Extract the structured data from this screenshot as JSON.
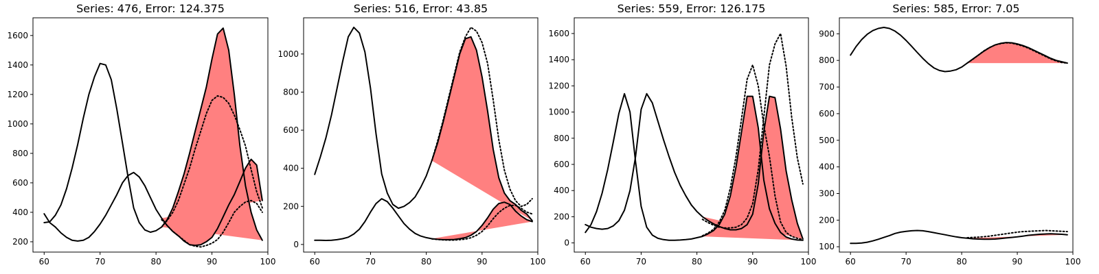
{
  "colors": {
    "actual": "#000000",
    "forecast": "#000000",
    "band": "#ff8080"
  },
  "chart_data": [
    {
      "type": "line",
      "title": "Series: 476, Error: 124.375",
      "xlim": [
        58,
        100
      ],
      "ylim": [
        130,
        1720
      ],
      "xticks": [
        60,
        70,
        80,
        90,
        100
      ],
      "yticks": [
        200,
        400,
        600,
        800,
        1000,
        1200,
        1400,
        1600
      ],
      "x": [
        60,
        61,
        62,
        63,
        64,
        65,
        66,
        67,
        68,
        69,
        70,
        71,
        72,
        73,
        74,
        75,
        76,
        77,
        78,
        79,
        80,
        81,
        82,
        83,
        84,
        85,
        86,
        87,
        88,
        89,
        90,
        91,
        92,
        93,
        94,
        95,
        96,
        97,
        98,
        99
      ],
      "series": [
        {
          "values": [
            390,
            330,
            300,
            260,
            230,
            210,
            205,
            210,
            230,
            270,
            320,
            380,
            450,
            520,
            600,
            650,
            670,
            640,
            580,
            500,
            420,
            360,
            310,
            270,
            240,
            205,
            180,
            175,
            180,
            200,
            230,
            290,
            370,
            450,
            520,
            610,
            700,
            760,
            720,
            480
          ]
        },
        {
          "values": [
            330,
            335,
            380,
            450,
            560,
            700,
            860,
            1040,
            1200,
            1320,
            1410,
            1400,
            1300,
            1100,
            870,
            640,
            430,
            330,
            280,
            265,
            275,
            300,
            350,
            430,
            540,
            660,
            800,
            950,
            1100,
            1250,
            1440,
            1610,
            1650,
            1500,
            1200,
            850,
            580,
            400,
            280,
            210
          ]
        }
      ],
      "forecast_start": 81,
      "forecasts": [
        {
          "values": [
            350,
            310,
            270,
            240,
            210,
            180,
            170,
            165,
            175,
            190,
            215,
            265,
            330,
            400,
            440,
            470,
            480,
            460,
            400,
            380
          ]
        },
        {
          "values": [
            300,
            345,
            400,
            480,
            590,
            700,
            830,
            950,
            1070,
            1160,
            1190,
            1180,
            1140,
            1060,
            960,
            850,
            690,
            540,
            430,
            370
          ]
        }
      ]
    },
    {
      "type": "line",
      "title": "Series: 516, Error: 43.85",
      "xlim": [
        58,
        100
      ],
      "ylim": [
        -40,
        1190
      ],
      "xticks": [
        60,
        70,
        80,
        90,
        100
      ],
      "yticks": [
        0,
        200,
        400,
        600,
        800,
        1000
      ],
      "x": [
        60,
        61,
        62,
        63,
        64,
        65,
        66,
        67,
        68,
        69,
        70,
        71,
        72,
        73,
        74,
        75,
        76,
        77,
        78,
        79,
        80,
        81,
        82,
        83,
        84,
        85,
        86,
        87,
        88,
        89,
        90,
        91,
        92,
        93,
        94,
        95,
        96,
        97,
        98,
        99
      ],
      "series": [
        {
          "values": [
            368,
            460,
            560,
            680,
            820,
            960,
            1090,
            1140,
            1110,
            1010,
            820,
            580,
            370,
            270,
            210,
            190,
            200,
            220,
            250,
            300,
            360,
            440,
            530,
            640,
            760,
            880,
            1000,
            1080,
            1090,
            1020,
            880,
            700,
            500,
            350,
            270,
            230,
            210,
            180,
            160,
            125
          ]
        },
        {
          "values": [
            22,
            22,
            21,
            22,
            25,
            30,
            38,
            55,
            80,
            120,
            170,
            215,
            240,
            225,
            190,
            150,
            110,
            80,
            58,
            44,
            36,
            30,
            27,
            25,
            25,
            26,
            30,
            36,
            48,
            68,
            100,
            140,
            185,
            215,
            222,
            210,
            175,
            150,
            130,
            120
          ]
        }
      ],
      "forecast_start": 81,
      "forecasts": [
        {
          "values": [
            440,
            540,
            650,
            770,
            890,
            1010,
            1090,
            1140,
            1120,
            1060,
            950,
            760,
            550,
            390,
            290,
            230,
            200,
            210,
            240,
            260
          ]
        },
        {
          "values": [
            29,
            26,
            24,
            23,
            23,
            25,
            28,
            35,
            48,
            68,
            98,
            135,
            168,
            190,
            205,
            205,
            190,
            170,
            160,
            180
          ]
        }
      ]
    },
    {
      "type": "line",
      "title": "Series: 559, Error: 126.175",
      "xlim": [
        58,
        100
      ],
      "ylim": [
        -70,
        1720
      ],
      "xticks": [
        60,
        70,
        80,
        90,
        100
      ],
      "yticks": [
        0,
        200,
        400,
        600,
        800,
        1000,
        1200,
        1400,
        1600
      ],
      "x": [
        60,
        61,
        62,
        63,
        64,
        65,
        66,
        67,
        68,
        69,
        70,
        71,
        72,
        73,
        74,
        75,
        76,
        77,
        78,
        79,
        80,
        81,
        82,
        83,
        84,
        85,
        86,
        87,
        88,
        89,
        90,
        91,
        92,
        93,
        94,
        95,
        96,
        97,
        98,
        99
      ],
      "series": [
        {
          "values": [
            140,
            120,
            110,
            105,
            110,
            130,
            170,
            250,
            400,
            660,
            1020,
            1140,
            1070,
            930,
            790,
            660,
            540,
            440,
            360,
            290,
            240,
            200,
            170,
            145,
            125,
            110,
            100,
            100,
            110,
            140,
            220,
            450,
            850,
            1120,
            1110,
            870,
            550,
            330,
            150,
            30
          ]
        },
        {
          "values": [
            80,
            140,
            240,
            380,
            560,
            770,
            990,
            1140,
            1000,
            620,
            280,
            120,
            60,
            35,
            25,
            20,
            20,
            22,
            25,
            30,
            40,
            50,
            70,
            95,
            140,
            220,
            360,
            580,
            850,
            1120,
            1120,
            880,
            480,
            260,
            150,
            80,
            45,
            30,
            22,
            20
          ]
        }
      ],
      "forecast_start": 81,
      "forecasts": [
        {
          "values": [
            180,
            155,
            135,
            120,
            115,
            115,
            120,
            140,
            190,
            300,
            560,
            960,
            1360,
            1520,
            1600,
            1350,
            960,
            650,
            450,
            700
          ]
        },
        {
          "values": [
            55,
            75,
            105,
            160,
            250,
            420,
            660,
            950,
            1250,
            1360,
            1200,
            900,
            660,
            360,
            160,
            80,
            50,
            35,
            25,
            20
          ]
        }
      ]
    },
    {
      "type": "line",
      "title": "Series: 585, Error: 7.05",
      "xlim": [
        58,
        100
      ],
      "ylim": [
        80,
        960
      ],
      "xticks": [
        60,
        70,
        80,
        90,
        100
      ],
      "yticks": [
        100,
        200,
        300,
        400,
        500,
        600,
        700,
        800,
        900
      ],
      "x": [
        60,
        61,
        62,
        63,
        64,
        65,
        66,
        67,
        68,
        69,
        70,
        71,
        72,
        73,
        74,
        75,
        76,
        77,
        78,
        79,
        80,
        81,
        82,
        83,
        84,
        85,
        86,
        87,
        88,
        89,
        90,
        91,
        92,
        93,
        94,
        95,
        96,
        97,
        98,
        99
      ],
      "series": [
        {
          "values": [
            820,
            852,
            878,
            898,
            912,
            920,
            924,
            920,
            910,
            895,
            875,
            853,
            830,
            808,
            788,
            772,
            762,
            758,
            760,
            765,
            775,
            790,
            805,
            820,
            835,
            848,
            858,
            864,
            867,
            866,
            862,
            856,
            848,
            838,
            828,
            818,
            808,
            800,
            795,
            790
          ]
        },
        {
          "values": [
            113,
            113,
            114,
            117,
            122,
            128,
            135,
            142,
            150,
            155,
            158,
            160,
            161,
            160,
            157,
            153,
            149,
            145,
            141,
            137,
            134,
            132,
            130,
            129,
            128,
            128,
            129,
            131,
            133,
            135,
            137,
            140,
            143,
            145,
            147,
            148,
            149,
            148,
            147,
            145
          ]
        }
      ],
      "forecast_start": 81,
      "forecasts": [
        {
          "values": [
            790,
            804,
            820,
            836,
            848,
            858,
            863,
            866,
            865,
            860,
            854,
            846,
            836,
            826,
            816,
            806,
            798,
            792,
            790,
            786
          ]
        },
        {
          "values": [
            134,
            135,
            136,
            138,
            140,
            143,
            146,
            149,
            152,
            155,
            157,
            158,
            159,
            160,
            161,
            160,
            159,
            158,
            157,
            156
          ]
        }
      ]
    }
  ]
}
